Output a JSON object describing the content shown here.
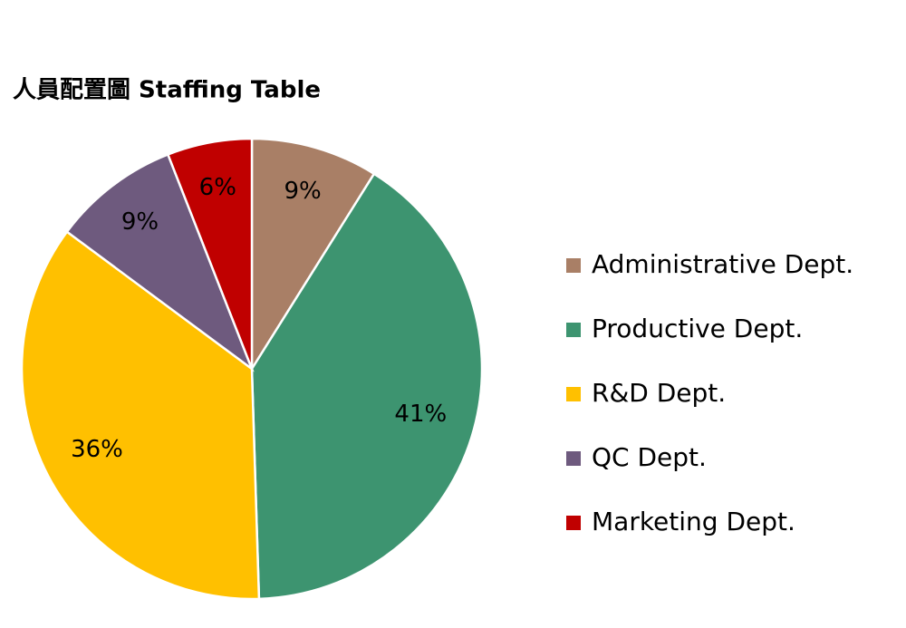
{
  "chart_data": {
    "type": "pie",
    "title": "人員配置圖  Staffing Table",
    "categories": [
      "Administrative Dept.",
      "Productive Dept.",
      "R&D Dept.",
      "QC Dept.",
      "Marketing Dept."
    ],
    "values": [
      9,
      41,
      36,
      9,
      6
    ],
    "value_labels": [
      "9%",
      "41%",
      "36%",
      "9%",
      "6%"
    ],
    "colors": [
      "#a97f66",
      "#3d9470",
      "#ffc000",
      "#6e5a7e",
      "#c00000"
    ],
    "legend": "right"
  }
}
